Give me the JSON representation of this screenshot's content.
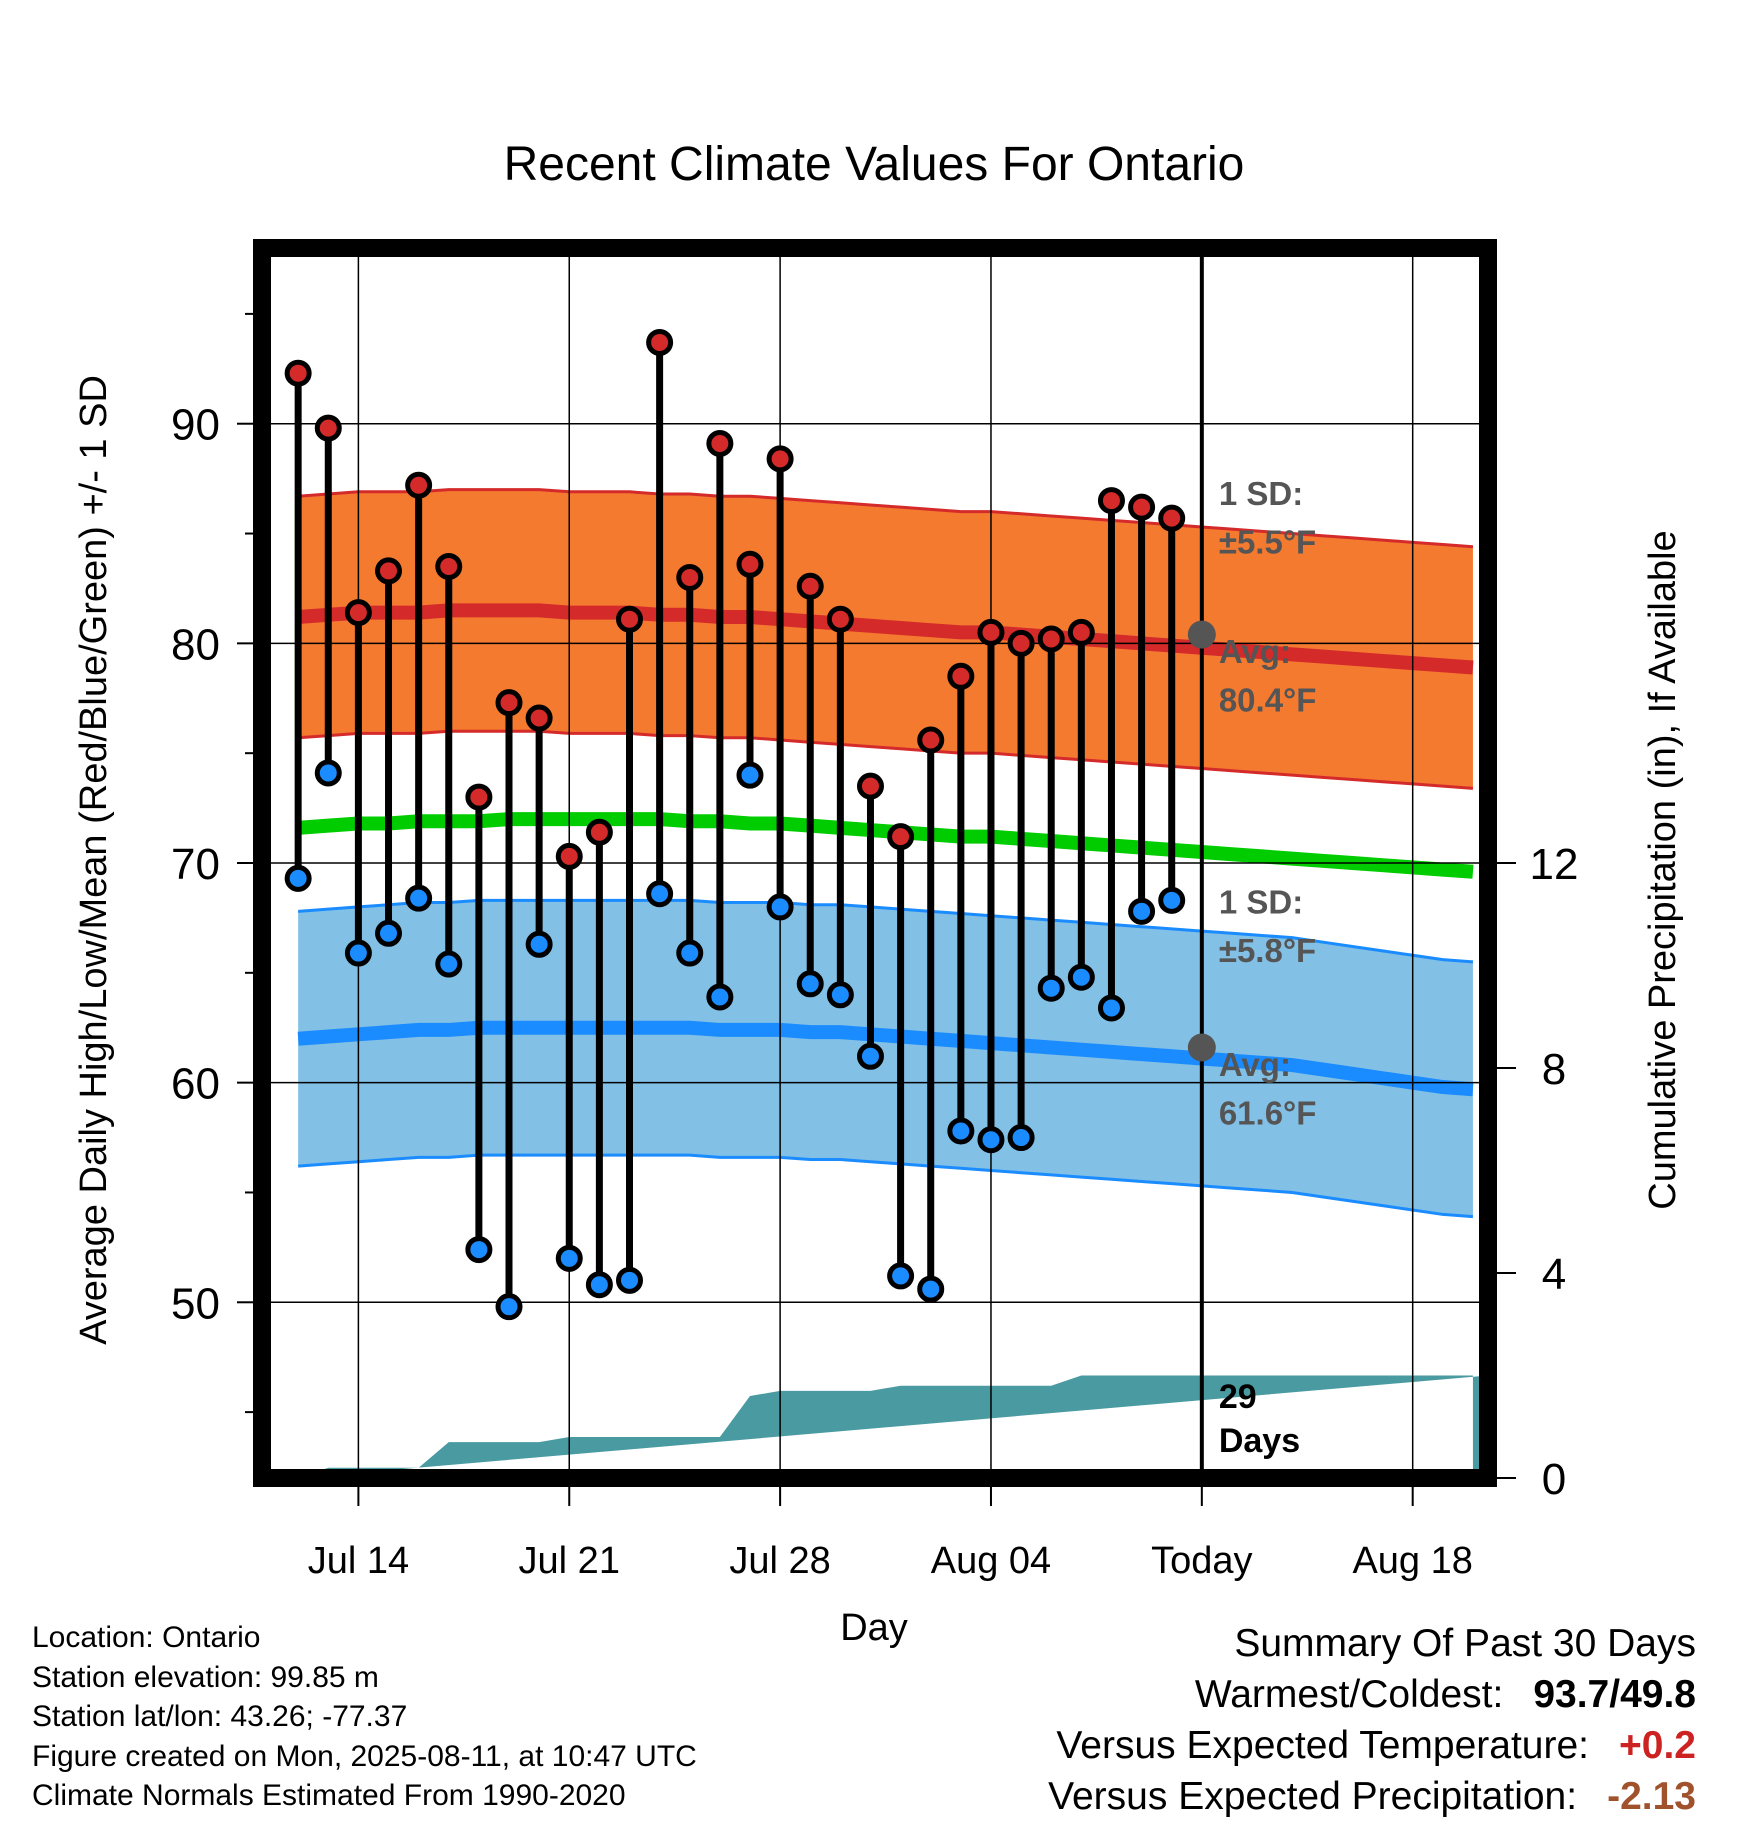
{
  "chart_data": {
    "type": "line",
    "title": "Recent Climate Values For Ontario",
    "xlabel": "Day",
    "ylabel_left": "Average Daily High/Low/Mean (Red/Blue/Green) +/- 1 SD",
    "ylabel_right": "Cumulative Precipitation (in), If Available",
    "x_tick_labels": [
      "Jul 14",
      "Jul 21",
      "Jul 28",
      "Aug 04",
      "Today",
      "Aug 18"
    ],
    "x_tick_days": [
      3,
      10,
      17,
      24,
      31,
      38
    ],
    "xlim_days": [
      -0.2,
      40.5
    ],
    "y_left_ticks": [
      50,
      60,
      70,
      80,
      90
    ],
    "y_left_lim": [
      42,
      98
    ],
    "y_right_ticks": [
      0,
      4,
      8,
      12
    ],
    "y_right_lim": [
      0,
      24
    ],
    "grid": true,
    "colors": {
      "high_band": "#f47a30",
      "high_mean": "#d42a2a",
      "low_band": "#82c0e6",
      "low_mean": "#1a8cff",
      "mean_line": "#00cc00",
      "precip": "#4a9aa2",
      "high_marker": "#d42a2a",
      "low_marker": "#1a8cff",
      "annotation": "#555555",
      "warm_value": "#cc2222",
      "precip_value": "#a0522d"
    },
    "days": [
      1,
      2,
      3,
      4,
      5,
      6,
      7,
      8,
      9,
      10,
      11,
      12,
      13,
      14,
      15,
      16,
      17,
      18,
      19,
      20,
      21,
      22,
      23,
      24,
      25,
      26,
      27,
      28,
      29,
      30
    ],
    "daily_highs": [
      92.3,
      89.8,
      81.4,
      83.3,
      87.2,
      83.5,
      73.0,
      77.3,
      76.6,
      70.3,
      71.4,
      81.1,
      93.7,
      83.0,
      89.1,
      83.6,
      88.4,
      82.6,
      81.1,
      73.5,
      71.2,
      75.6,
      78.5,
      80.5,
      80.0,
      80.2,
      80.5,
      86.5,
      86.2,
      85.7
    ],
    "daily_lows": [
      69.3,
      74.1,
      65.9,
      66.8,
      68.4,
      65.4,
      52.4,
      49.8,
      66.3,
      52.0,
      50.8,
      51.0,
      68.6,
      65.9,
      63.9,
      74.0,
      68.0,
      64.5,
      64.0,
      61.2,
      51.2,
      50.6,
      57.8,
      57.4,
      57.5,
      64.3,
      64.8,
      63.4,
      67.8,
      68.3
    ],
    "normal_high": [
      81.2,
      81.3,
      81.4,
      81.4,
      81.4,
      81.5,
      81.5,
      81.5,
      81.5,
      81.4,
      81.4,
      81.4,
      81.3,
      81.3,
      81.2,
      81.2,
      81.1,
      81.0,
      80.9,
      80.8,
      80.7,
      80.6,
      80.5,
      80.5,
      80.4,
      80.3,
      80.2,
      80.1,
      80.0,
      79.9,
      79.8,
      79.7,
      79.6,
      79.5,
      79.4,
      79.3,
      79.2,
      79.1,
      79.0,
      78.9
    ],
    "normal_low": [
      62.0,
      62.1,
      62.2,
      62.3,
      62.4,
      62.4,
      62.5,
      62.5,
      62.5,
      62.5,
      62.5,
      62.5,
      62.5,
      62.5,
      62.4,
      62.4,
      62.4,
      62.3,
      62.3,
      62.2,
      62.1,
      62.0,
      61.9,
      61.8,
      61.7,
      61.6,
      61.5,
      61.4,
      61.3,
      61.2,
      61.1,
      61.0,
      60.9,
      60.8,
      60.6,
      60.4,
      60.2,
      60.0,
      59.8,
      59.7
    ],
    "normal_mean": [
      71.6,
      71.7,
      71.8,
      71.8,
      71.9,
      71.9,
      71.9,
      72.0,
      72.0,
      72.0,
      72.0,
      72.0,
      72.0,
      71.9,
      71.9,
      71.8,
      71.8,
      71.7,
      71.6,
      71.5,
      71.4,
      71.3,
      71.2,
      71.2,
      71.1,
      71.0,
      70.9,
      70.8,
      70.7,
      70.6,
      70.5,
      70.4,
      70.3,
      70.2,
      70.1,
      70.0,
      69.9,
      69.8,
      69.7,
      69.6
    ],
    "high_sd": 5.5,
    "low_sd": 5.8,
    "cumulative_precip": [
      0,
      0.2,
      0.2,
      0.2,
      0.2,
      0.7,
      0.7,
      0.7,
      0.7,
      0.8,
      0.8,
      0.8,
      0.8,
      0.8,
      0.8,
      1.6,
      1.7,
      1.7,
      1.7,
      1.7,
      1.8,
      1.8,
      1.8,
      1.8,
      1.8,
      1.8,
      2.0,
      2.0,
      2.0,
      2.0,
      2.0,
      2.0,
      2.0,
      2.0,
      2.0,
      2.0,
      2.0,
      2.0,
      2.0,
      2.0
    ],
    "annotations": {
      "high_sd_label": "1 SD:",
      "high_sd_value": "±5.5°F",
      "high_avg_label": "Avg:",
      "high_avg_value": "80.4°F",
      "low_sd_label": "1 SD:",
      "low_sd_value": "±5.8°F",
      "low_avg_label": "Avg:",
      "low_avg_value": "61.6°F",
      "days_count": "29",
      "days_word": "Days"
    },
    "today_high_avg": 80.4,
    "today_low_avg": 61.6
  },
  "info": {
    "location": "Location: Ontario",
    "elevation": "Station elevation: 99.85 m",
    "latlon": "Station lat/lon: 43.26; -77.37",
    "created": "Figure created on Mon, 2025-08-11, at 10:47 UTC",
    "normals": "Climate Normals Estimated From 1990-2020"
  },
  "summary": {
    "title": "Summary Of Past 30 Days",
    "warm_cold_label": "Warmest/Coldest:",
    "warm_cold_value": "93.7/49.8",
    "temp_label": "Versus Expected Temperature:",
    "temp_value": "+0.2",
    "precip_label": "Versus Expected Precipitation:",
    "precip_value": "-2.13"
  }
}
